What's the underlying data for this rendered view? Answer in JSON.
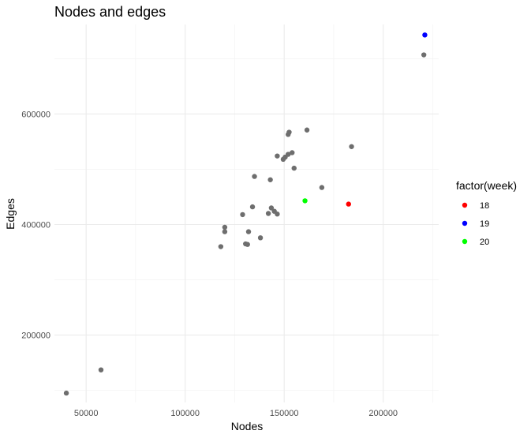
{
  "chart_data": {
    "type": "scatter",
    "title": "Nodes and edges",
    "xlabel": "Nodes",
    "ylabel": "Edges",
    "xlim": [
      34000,
      228000
    ],
    "ylim": [
      78000,
      762000
    ],
    "x_ticks": [
      50000,
      100000,
      150000,
      200000
    ],
    "x_tick_labels": [
      "50000",
      "100000",
      "150000",
      "200000"
    ],
    "y_ticks": [
      200000,
      400000,
      600000
    ],
    "y_tick_labels": [
      "200000",
      "400000",
      "600000"
    ],
    "grid": true,
    "legend": {
      "title": "factor(week)",
      "position": "right",
      "entries": [
        {
          "label": "18",
          "color": "#ff0000"
        },
        {
          "label": "19",
          "color": "#0000ff"
        },
        {
          "label": "20",
          "color": "#00ff00"
        }
      ]
    },
    "other_color": "#6e6e6e",
    "points": [
      {
        "x": 40000,
        "y": 95000,
        "group": null
      },
      {
        "x": 57500,
        "y": 137000,
        "group": null
      },
      {
        "x": 118000,
        "y": 360000,
        "group": null
      },
      {
        "x": 120000,
        "y": 395000,
        "group": null
      },
      {
        "x": 120000,
        "y": 387000,
        "group": null
      },
      {
        "x": 129000,
        "y": 418000,
        "group": null
      },
      {
        "x": 130500,
        "y": 365000,
        "group": null
      },
      {
        "x": 131500,
        "y": 364000,
        "group": null
      },
      {
        "x": 132000,
        "y": 387000,
        "group": null
      },
      {
        "x": 134000,
        "y": 432000,
        "group": null
      },
      {
        "x": 135000,
        "y": 487000,
        "group": null
      },
      {
        "x": 138000,
        "y": 376000,
        "group": null
      },
      {
        "x": 142000,
        "y": 420000,
        "group": null
      },
      {
        "x": 143000,
        "y": 481000,
        "group": null
      },
      {
        "x": 143500,
        "y": 430000,
        "group": null
      },
      {
        "x": 145000,
        "y": 424000,
        "group": null
      },
      {
        "x": 146500,
        "y": 419000,
        "group": null
      },
      {
        "x": 146500,
        "y": 524000,
        "group": null
      },
      {
        "x": 149500,
        "y": 518000,
        "group": null
      },
      {
        "x": 150500,
        "y": 522000,
        "group": null
      },
      {
        "x": 152000,
        "y": 563000,
        "group": null
      },
      {
        "x": 152500,
        "y": 567000,
        "group": null
      },
      {
        "x": 152000,
        "y": 527000,
        "group": null
      },
      {
        "x": 154000,
        "y": 530000,
        "group": null
      },
      {
        "x": 155000,
        "y": 502000,
        "group": null
      },
      {
        "x": 161500,
        "y": 571000,
        "group": null
      },
      {
        "x": 169000,
        "y": 467000,
        "group": null
      },
      {
        "x": 184000,
        "y": 541000,
        "group": null
      },
      {
        "x": 220500,
        "y": 707000,
        "group": null
      },
      {
        "x": 160500,
        "y": 443000,
        "group": "20"
      },
      {
        "x": 182500,
        "y": 437000,
        "group": "18"
      },
      {
        "x": 221000,
        "y": 743000,
        "group": "19"
      }
    ]
  }
}
